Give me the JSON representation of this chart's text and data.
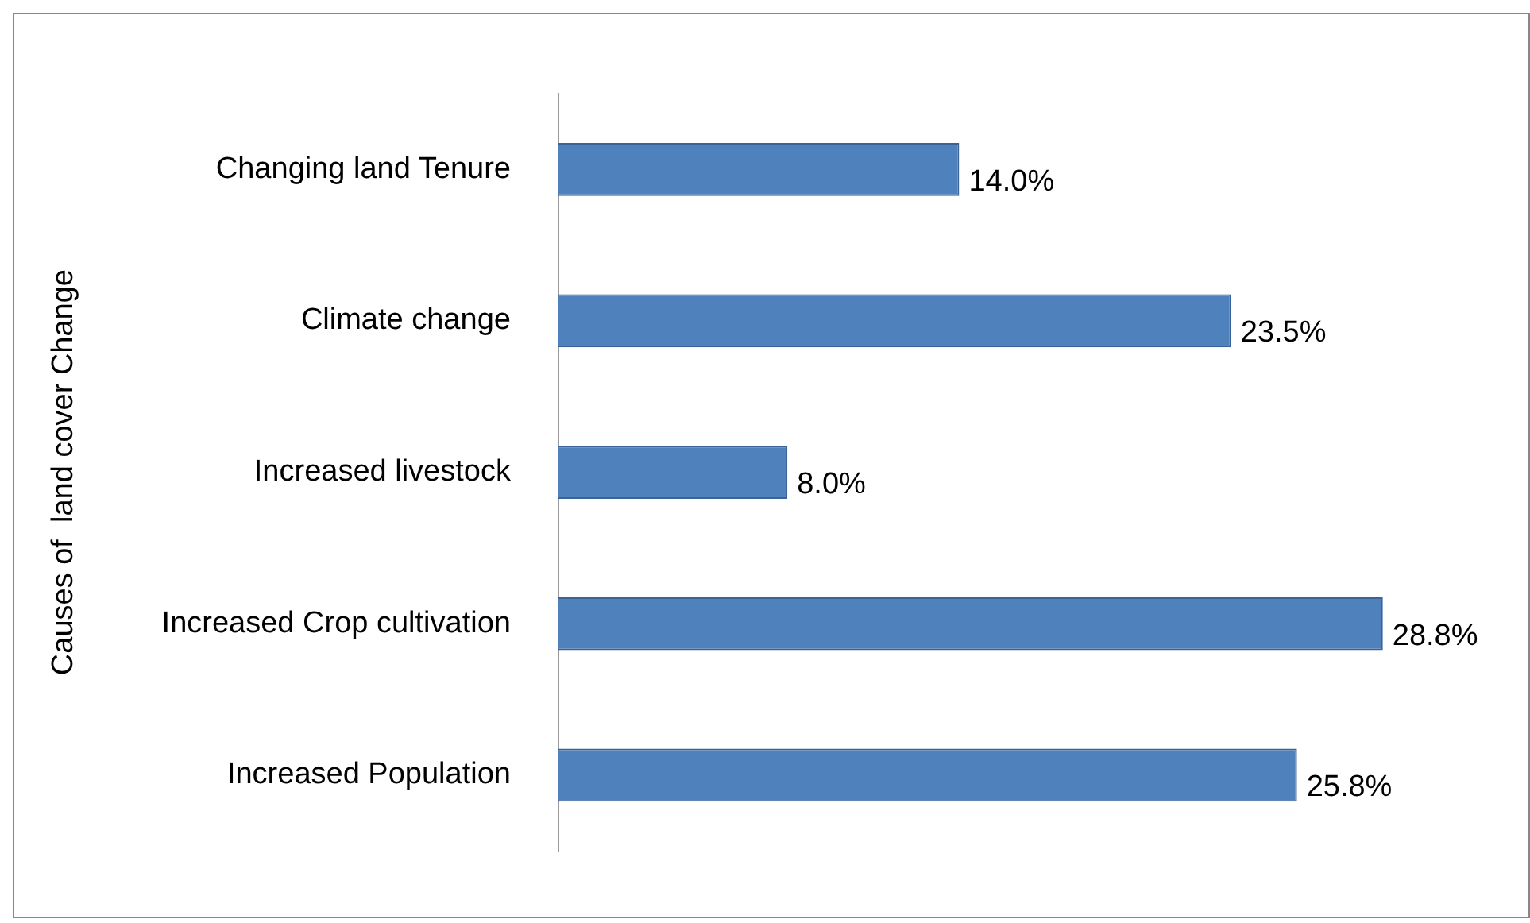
{
  "chart_data": {
    "type": "bar",
    "orientation": "horizontal",
    "ylabel": "Causes of  land cover Change",
    "categories": [
      "Changing land Tenure",
      "Climate change",
      "Increased livestock",
      "Increased Crop cultivation",
      "Increased Population"
    ],
    "values": [
      14.0,
      23.5,
      8.0,
      28.8,
      25.8
    ],
    "value_labels": [
      "14.0%",
      "23.5%",
      "8.0%",
      "28.8%",
      "25.8%"
    ],
    "color": "#4f81bd"
  }
}
